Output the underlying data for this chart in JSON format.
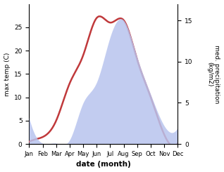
{
  "months": [
    "Jan",
    "Feb",
    "Mar",
    "Apr",
    "May",
    "Jun",
    "Jul",
    "Aug",
    "Sep",
    "Oct",
    "Nov",
    "Dec"
  ],
  "temperature": [
    0.5,
    1.5,
    5.0,
    13.0,
    19.0,
    27.0,
    26.0,
    26.5,
    18.0,
    10.0,
    2.0,
    0.2
  ],
  "precipitation": [
    3.2,
    0.1,
    0.1,
    0.5,
    5.0,
    7.5,
    13.0,
    15.0,
    10.5,
    6.0,
    2.2,
    2.0
  ],
  "temp_color": "#c0393b",
  "precip_color_fill": "#b8c4ee",
  "ylabel_left": "max temp (C)",
  "ylabel_right": "med. precipitation\n(kg/m2)",
  "xlabel": "date (month)",
  "ylim_left": [
    0,
    30
  ],
  "ylim_right": [
    0,
    17
  ],
  "yticks_left": [
    0,
    5,
    10,
    15,
    20,
    25
  ],
  "yticks_right": [
    0,
    5,
    10,
    15
  ],
  "bg_color": "#ffffff",
  "line_width": 1.8
}
